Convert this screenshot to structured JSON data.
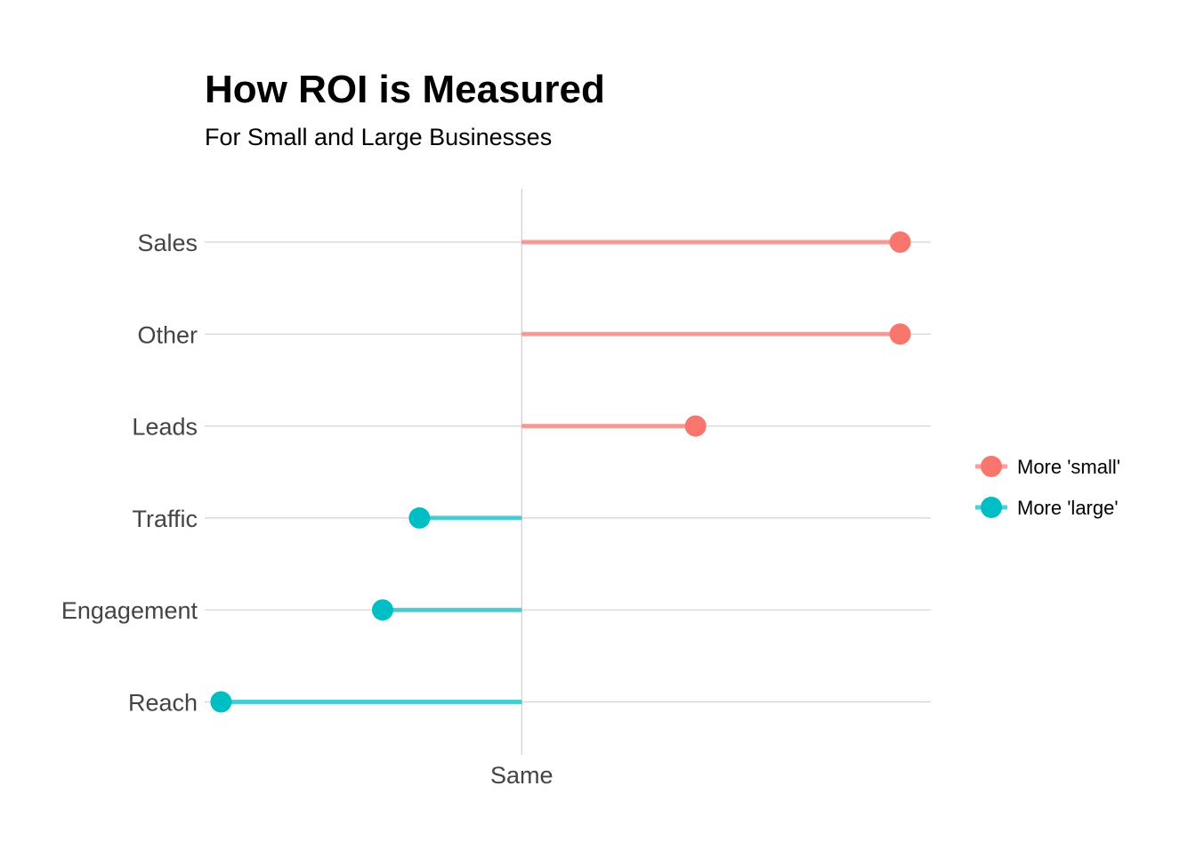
{
  "chart_data": {
    "type": "lollipop",
    "title": "How ROI is Measured",
    "subtitle": "For Small and Large Businesses",
    "xlabel": "",
    "ylabel": "",
    "x_tick_labels": [
      {
        "value": 0,
        "label": "Same"
      }
    ],
    "xlim": [
      -0.155,
      0.2
    ],
    "categories": [
      "Sales",
      "Other",
      "Leads",
      "Traffic",
      "Engagement",
      "Reach"
    ],
    "values": [
      0.185,
      0.185,
      0.085,
      -0.05,
      -0.068,
      -0.147
    ],
    "groups": [
      "More 'small'",
      "More 'small'",
      "More 'small'",
      "More 'large'",
      "More 'large'",
      "More 'large'"
    ],
    "grid": {
      "horizontal": true,
      "vertical_at_zero": true
    },
    "legend": {
      "position": "right",
      "items": [
        {
          "label": "More 'small'",
          "color": "#F8766D"
        },
        {
          "label": "More 'large'",
          "color": "#00BFC4"
        }
      ]
    },
    "colors": {
      "More 'small'": "#F8766D",
      "More 'large'": "#00BFC4",
      "gridline": "#d3d3d3",
      "zeroline": "#cfcfcf",
      "title": "#000000",
      "axis_text": "#444444"
    }
  }
}
